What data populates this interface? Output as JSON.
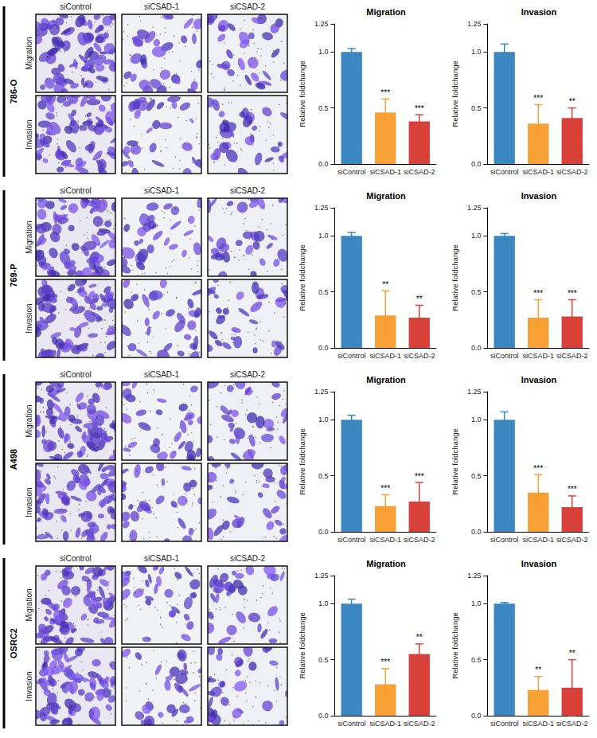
{
  "cell_lines": [
    "786-O",
    "769-P",
    "A498",
    "OSRC2"
  ],
  "image_columns": [
    "siControl",
    "siCSAD-1",
    "siCSAD-2"
  ],
  "image_rows": [
    "Migration",
    "Invasion"
  ],
  "chart_data": [
    {
      "type": "bar",
      "title": "Migration",
      "y_label": "Relative foldchange",
      "categories": [
        "siControl",
        "siCSAD-1",
        "siCSAD-2"
      ],
      "values": [
        1.0,
        0.46,
        0.38
      ],
      "errors": [
        0.03,
        0.12,
        0.06
      ],
      "significance": [
        null,
        "***",
        "***"
      ],
      "colors": [
        "#3b87c2",
        "#f7a033",
        "#d8413a"
      ],
      "ylim": [
        0,
        1.25
      ],
      "yticks": [
        {
          "value": 0,
          "label": "0.0"
        },
        0.5,
        {
          "value": 1,
          "label": "1.0"
        },
        1.25
      ],
      "grid": false
    },
    {
      "type": "bar",
      "title": "Invasion",
      "y_label": "Relative foldchange",
      "categories": [
        "siControl",
        "siCSAD-1",
        "siCSAD-2"
      ],
      "values": [
        1.0,
        0.36,
        0.41
      ],
      "errors": [
        0.07,
        0.17,
        0.09
      ],
      "significance": [
        null,
        "***",
        "**"
      ],
      "colors": [
        "#3b87c2",
        "#f7a033",
        "#d8413a"
      ],
      "ylim": [
        0,
        1.25
      ],
      "yticks": [
        {
          "value": 0,
          "label": "0.0"
        },
        0.5,
        {
          "value": 1,
          "label": "1.0"
        },
        1.25
      ],
      "grid": false
    },
    {
      "type": "bar",
      "title": "Migration",
      "y_label": "Relative foldchange",
      "categories": [
        "siControl",
        "siCSAD-1",
        "siCSAD-2"
      ],
      "values": [
        1.0,
        0.29,
        0.27
      ],
      "errors": [
        0.03,
        0.22,
        0.11
      ],
      "significance": [
        null,
        "**",
        "**"
      ],
      "colors": [
        "#3b87c2",
        "#f7a033",
        "#d8413a"
      ],
      "ylim": [
        0,
        1.25
      ],
      "yticks": [
        {
          "value": 0,
          "label": "0.0"
        },
        0.5,
        {
          "value": 1,
          "label": "1.0"
        },
        1.25
      ],
      "grid": false
    },
    {
      "type": "bar",
      "title": "Invasion",
      "y_label": "Relative foldchange",
      "categories": [
        "siControl",
        "siCSAD-1",
        "siCSAD-2"
      ],
      "values": [
        1.0,
        0.27,
        0.28
      ],
      "errors": [
        0.02,
        0.16,
        0.15
      ],
      "significance": [
        null,
        "***",
        "***"
      ],
      "colors": [
        "#3b87c2",
        "#f7a033",
        "#d8413a"
      ],
      "ylim": [
        0,
        1.25
      ],
      "yticks": [
        {
          "value": 0,
          "label": "0.0"
        },
        0.5,
        {
          "value": 1,
          "label": "1.0"
        },
        1.25
      ],
      "grid": false
    },
    {
      "type": "bar",
      "title": "Migration",
      "y_label": "Relative foldchange",
      "categories": [
        "siControl",
        "siCSAD-1",
        "siCSAD-2"
      ],
      "values": [
        1.0,
        0.23,
        0.27
      ],
      "errors": [
        0.04,
        0.1,
        0.17
      ],
      "significance": [
        null,
        "***",
        "***"
      ],
      "colors": [
        "#3b87c2",
        "#f7a033",
        "#d8413a"
      ],
      "ylim": [
        0,
        1.25
      ],
      "yticks": [
        {
          "value": 0,
          "label": "0.0"
        },
        0.5,
        {
          "value": 1,
          "label": "1.0"
        },
        1.25
      ],
      "grid": false
    },
    {
      "type": "bar",
      "title": "Invasion",
      "y_label": "Relative foldchange",
      "categories": [
        "siControl",
        "siCSAD-1",
        "siCSAD-2"
      ],
      "values": [
        1.0,
        0.35,
        0.22
      ],
      "errors": [
        0.07,
        0.16,
        0.1
      ],
      "significance": [
        null,
        "***",
        "***"
      ],
      "colors": [
        "#3b87c2",
        "#f7a033",
        "#d8413a"
      ],
      "ylim": [
        0,
        1.25
      ],
      "yticks": [
        {
          "value": 0,
          "label": "0.0"
        },
        0.5,
        {
          "value": 1,
          "label": "1.0"
        },
        1.25
      ],
      "grid": false
    },
    {
      "type": "bar",
      "title": "Migration",
      "y_label": "Relative foldchange",
      "categories": [
        "siControl",
        "siCSAD-1",
        "siCSAD-2"
      ],
      "values": [
        1.0,
        0.28,
        0.55
      ],
      "errors": [
        0.04,
        0.14,
        0.09
      ],
      "significance": [
        null,
        "***",
        "**"
      ],
      "colors": [
        "#3b87c2",
        "#f7a033",
        "#d8413a"
      ],
      "ylim": [
        0,
        1.25
      ],
      "yticks": [
        {
          "value": 0,
          "label": "0.0"
        },
        0.5,
        {
          "value": 1,
          "label": "1.0"
        },
        1.25
      ],
      "grid": false
    },
    {
      "type": "bar",
      "title": "Invasion",
      "y_label": "Relative foldchange",
      "categories": [
        "siControl",
        "siCSAD-1",
        "siCSAD-2"
      ],
      "values": [
        1.0,
        0.23,
        0.25
      ],
      "errors": [
        0.01,
        0.12,
        0.25
      ],
      "significance": [
        null,
        "**",
        "**"
      ],
      "colors": [
        "#3b87c2",
        "#f7a033",
        "#d8413a"
      ],
      "ylim": [
        0,
        1.25
      ],
      "yticks": [
        {
          "value": 0,
          "label": "0.0"
        },
        0.5,
        {
          "value": 1,
          "label": "1.0"
        },
        1.25
      ],
      "grid": false
    }
  ]
}
